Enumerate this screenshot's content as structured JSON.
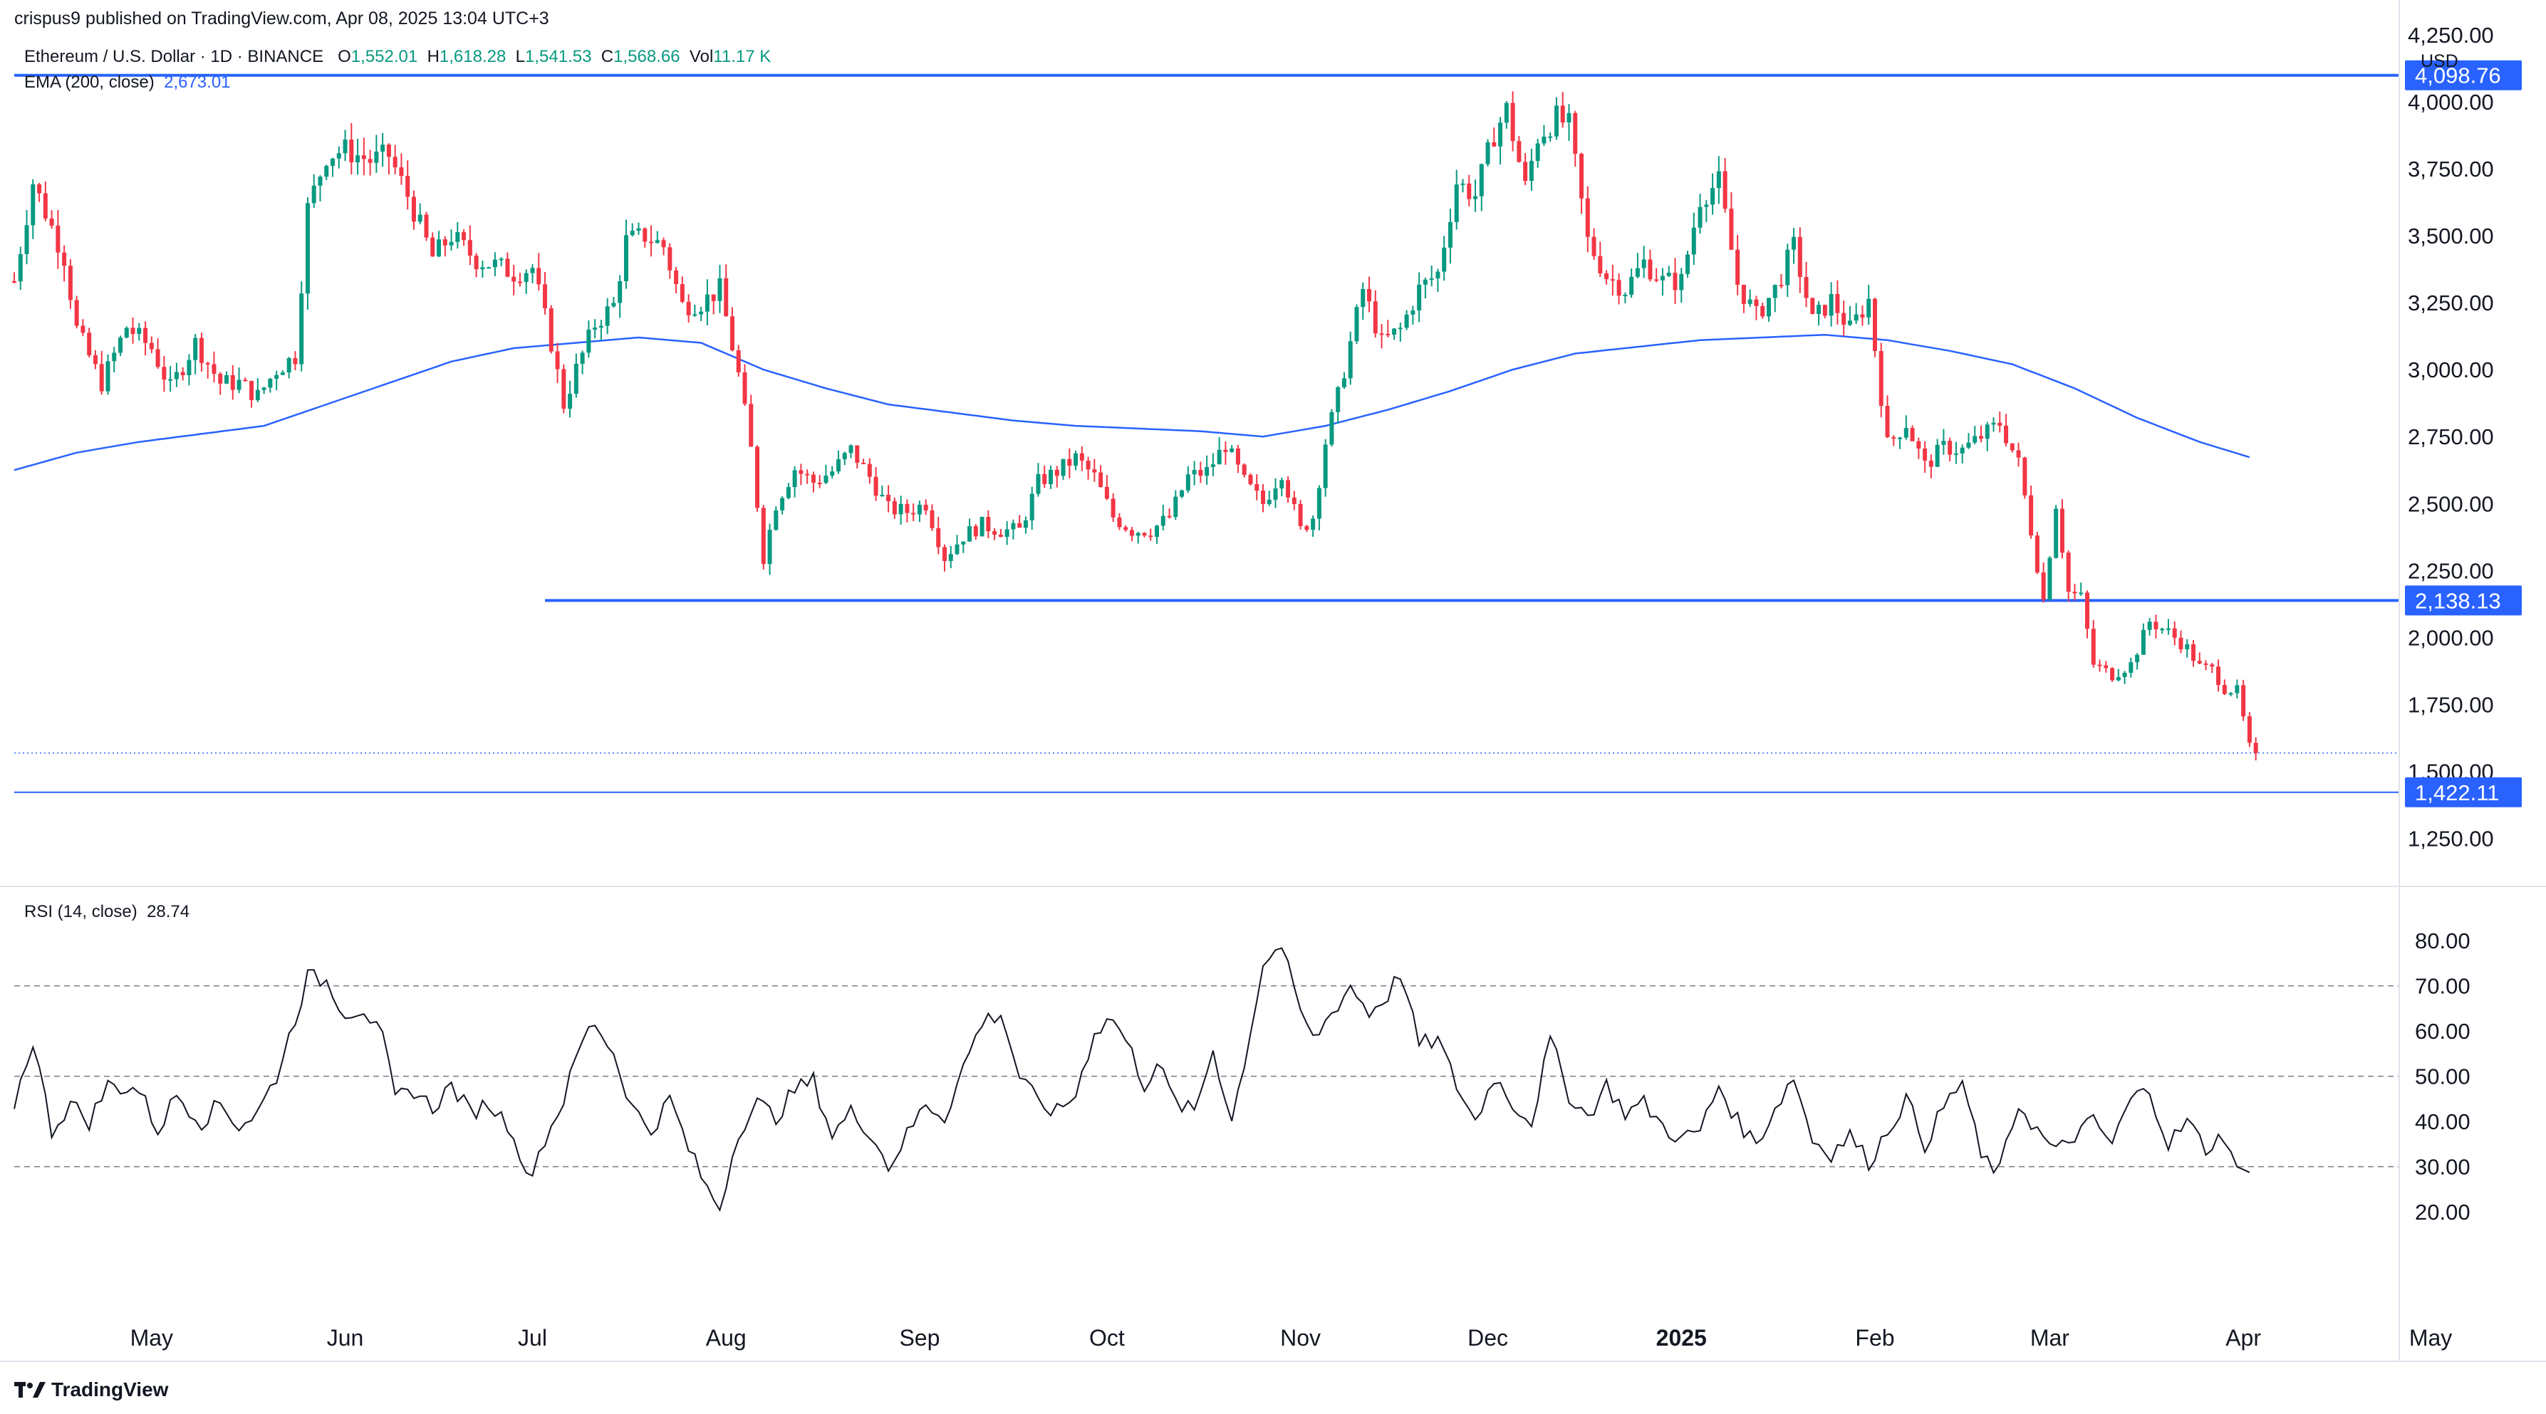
{
  "header": {
    "published": "crispus9 published on TradingView.com, Apr 08, 2025 13:04 UTC+3",
    "symbol": "Ethereum / U.S. Dollar · 1D · BINANCE",
    "o_label": "O",
    "o_val": "1,552.01",
    "h_label": "H",
    "h_val": "1,618.28",
    "l_label": "L",
    "l_val": "1,541.53",
    "c_label": "C",
    "c_val": "1,568.66",
    "vol_label": "Vol",
    "vol_val": "11.17 K",
    "ema_label": "EMA (200, close)",
    "ema_val": "2,673.01",
    "rsi_label": "RSI (14, close)",
    "rsi_val": "28.74",
    "currency": "USD"
  },
  "brand": {
    "name": "TradingView",
    "icon": "tradingview-logo-icon"
  },
  "colors": {
    "up": "#089981",
    "down": "#f23645",
    "ema": "#2962ff",
    "level": "#2962ff",
    "rsi": "#131722",
    "grid": "#787b86"
  },
  "chart_data": [
    {
      "type": "candlestick",
      "symbol": "ETH/USD",
      "interval": "1D",
      "ylim": [
        1100,
        4300
      ],
      "ytick_labels": [
        "1,250.00",
        "1,500.00",
        "1,750.00",
        "2,000.00",
        "2,250.00",
        "2,500.00",
        "2,750.00",
        "3,000.00",
        "3,250.00",
        "3,500.00",
        "3,750.00",
        "4,000.00",
        "4,250.00"
      ],
      "ytick_values": [
        1250,
        1500,
        1750,
        2000,
        2250,
        2500,
        2750,
        3000,
        3250,
        3500,
        3750,
        4000,
        4250
      ],
      "xtick_labels": [
        "May",
        "Jun",
        "Jul",
        "Aug",
        "Sep",
        "Oct",
        "Nov",
        "Dec",
        "2025",
        "Feb",
        "Mar",
        "Apr",
        "May"
      ],
      "xtick_days": [
        22,
        53,
        83,
        114,
        145,
        175,
        206,
        236,
        267,
        298,
        326,
        357,
        387
      ],
      "horizontal_levels": [
        {
          "label": "4,098.76",
          "value": 4098.76,
          "from_day": 0
        },
        {
          "label": "2,138.13",
          "value": 2138.13,
          "from_day": 85
        },
        {
          "label": "1,422.11",
          "value": 1422.11,
          "from_day": 0
        }
      ],
      "last_price": 1568.66,
      "price_anchors": [
        [
          0,
          3330
        ],
        [
          3,
          3700
        ],
        [
          8,
          3420
        ],
        [
          10,
          3150
        ],
        [
          14,
          2950
        ],
        [
          18,
          3160
        ],
        [
          22,
          3080
        ],
        [
          25,
          2930
        ],
        [
          29,
          3100
        ],
        [
          33,
          2950
        ],
        [
          36,
          2950
        ],
        [
          39,
          2900
        ],
        [
          42,
          3000
        ],
        [
          45,
          3050
        ],
        [
          47,
          3600
        ],
        [
          50,
          3800
        ],
        [
          53,
          3820
        ],
        [
          57,
          3780
        ],
        [
          60,
          3800
        ],
        [
          63,
          3650
        ],
        [
          67,
          3420
        ],
        [
          70,
          3500
        ],
        [
          74,
          3410
        ],
        [
          77,
          3390
        ],
        [
          80,
          3360
        ],
        [
          83,
          3380
        ],
        [
          86,
          3100
        ],
        [
          88,
          2870
        ],
        [
          90,
          3000
        ],
        [
          93,
          3170
        ],
        [
          96,
          3240
        ],
        [
          98,
          3480
        ],
        [
          101,
          3500
        ],
        [
          104,
          3460
        ],
        [
          107,
          3240
        ],
        [
          110,
          3250
        ],
        [
          113,
          3300
        ],
        [
          116,
          2980
        ],
        [
          118,
          2700
        ],
        [
          120,
          2300
        ],
        [
          122,
          2500
        ],
        [
          125,
          2630
        ],
        [
          128,
          2580
        ],
        [
          131,
          2620
        ],
        [
          134,
          2700
        ],
        [
          137,
          2600
        ],
        [
          140,
          2480
        ],
        [
          143,
          2470
        ],
        [
          146,
          2500
        ],
        [
          149,
          2300
        ],
        [
          152,
          2380
        ],
        [
          155,
          2420
        ],
        [
          158,
          2400
        ],
        [
          161,
          2400
        ],
        [
          164,
          2580
        ],
        [
          167,
          2620
        ],
        [
          170,
          2670
        ],
        [
          173,
          2600
        ],
        [
          176,
          2450
        ],
        [
          179,
          2400
        ],
        [
          182,
          2400
        ],
        [
          185,
          2450
        ],
        [
          188,
          2600
        ],
        [
          191,
          2620
        ],
        [
          194,
          2720
        ],
        [
          197,
          2580
        ],
        [
          200,
          2500
        ],
        [
          203,
          2620
        ],
        [
          206,
          2400
        ],
        [
          208,
          2450
        ],
        [
          210,
          2730
        ],
        [
          212,
          2900
        ],
        [
          214,
          3100
        ],
        [
          216,
          3300
        ],
        [
          219,
          3100
        ],
        [
          222,
          3150
        ],
        [
          225,
          3300
        ],
        [
          228,
          3360
        ],
        [
          231,
          3700
        ],
        [
          234,
          3650
        ],
        [
          237,
          3880
        ],
        [
          239,
          3970
        ],
        [
          242,
          3680
        ],
        [
          244,
          3870
        ],
        [
          247,
          3940
        ],
        [
          249,
          3910
        ],
        [
          252,
          3480
        ],
        [
          255,
          3350
        ],
        [
          258,
          3300
        ],
        [
          261,
          3400
        ],
        [
          264,
          3330
        ],
        [
          267,
          3330
        ],
        [
          270,
          3640
        ],
        [
          273,
          3700
        ],
        [
          276,
          3320
        ],
        [
          279,
          3200
        ],
        [
          282,
          3300
        ],
        [
          285,
          3460
        ],
        [
          288,
          3180
        ],
        [
          291,
          3260
        ],
        [
          294,
          3150
        ],
        [
          297,
          3260
        ],
        [
          300,
          2720
        ],
        [
          303,
          2800
        ],
        [
          306,
          2640
        ],
        [
          309,
          2710
        ],
        [
          312,
          2700
        ],
        [
          315,
          2750
        ],
        [
          318,
          2800
        ],
        [
          321,
          2650
        ],
        [
          323,
          2400
        ],
        [
          325,
          2140
        ],
        [
          327,
          2500
        ],
        [
          329,
          2170
        ],
        [
          331,
          2150
        ],
        [
          333,
          1900
        ],
        [
          336,
          1860
        ],
        [
          339,
          1900
        ],
        [
          342,
          2060
        ],
        [
          345,
          2020
        ],
        [
          348,
          1960
        ],
        [
          350,
          1890
        ],
        [
          352,
          1880
        ],
        [
          354,
          1810
        ],
        [
          356,
          1800
        ],
        [
          358,
          1590
        ],
        [
          359,
          1569
        ]
      ],
      "ema200_anchors": [
        [
          0,
          2625
        ],
        [
          10,
          2690
        ],
        [
          20,
          2730
        ],
        [
          30,
          2760
        ],
        [
          40,
          2790
        ],
        [
          50,
          2870
        ],
        [
          60,
          2950
        ],
        [
          70,
          3030
        ],
        [
          80,
          3080
        ],
        [
          90,
          3100
        ],
        [
          100,
          3120
        ],
        [
          110,
          3100
        ],
        [
          120,
          3000
        ],
        [
          130,
          2930
        ],
        [
          140,
          2870
        ],
        [
          150,
          2840
        ],
        [
          160,
          2810
        ],
        [
          170,
          2790
        ],
        [
          180,
          2780
        ],
        [
          190,
          2770
        ],
        [
          200,
          2750
        ],
        [
          210,
          2790
        ],
        [
          220,
          2850
        ],
        [
          230,
          2920
        ],
        [
          240,
          3000
        ],
        [
          250,
          3060
        ],
        [
          260,
          3085
        ],
        [
          270,
          3110
        ],
        [
          280,
          3120
        ],
        [
          290,
          3130
        ],
        [
          300,
          3110
        ],
        [
          310,
          3070
        ],
        [
          320,
          3020
        ],
        [
          330,
          2930
        ],
        [
          340,
          2820
        ],
        [
          350,
          2730
        ],
        [
          358,
          2673
        ]
      ]
    },
    {
      "type": "line",
      "name": "RSI (14, close)",
      "ylim": [
        12,
        86
      ],
      "ytick_labels": [
        "20.00",
        "30.00",
        "40.00",
        "50.00",
        "60.00",
        "70.00",
        "80.00"
      ],
      "ytick_values": [
        20,
        30,
        40,
        50,
        60,
        70,
        80
      ],
      "bands": [
        30,
        50,
        70
      ],
      "last_value": 28.74,
      "anchors": [
        [
          0,
          44
        ],
        [
          3,
          58
        ],
        [
          6,
          38
        ],
        [
          9,
          44
        ],
        [
          12,
          40
        ],
        [
          15,
          48
        ],
        [
          20,
          47
        ],
        [
          23,
          38
        ],
        [
          26,
          46
        ],
        [
          30,
          40
        ],
        [
          33,
          44
        ],
        [
          36,
          39
        ],
        [
          39,
          42
        ],
        [
          42,
          50
        ],
        [
          45,
          63
        ],
        [
          47,
          72
        ],
        [
          50,
          71
        ],
        [
          53,
          64
        ],
        [
          56,
          65
        ],
        [
          59,
          58
        ],
        [
          61,
          45
        ],
        [
          64,
          47
        ],
        [
          67,
          43
        ],
        [
          70,
          48
        ],
        [
          73,
          42
        ],
        [
          76,
          44
        ],
        [
          80,
          38
        ],
        [
          82,
          27
        ],
        [
          85,
          36
        ],
        [
          88,
          45
        ],
        [
          91,
          58
        ],
        [
          93,
          62
        ],
        [
          96,
          55
        ],
        [
          99,
          43
        ],
        [
          102,
          38
        ],
        [
          105,
          45
        ],
        [
          108,
          34
        ],
        [
          111,
          25
        ],
        [
          113,
          21
        ],
        [
          116,
          38
        ],
        [
          119,
          44
        ],
        [
          122,
          41
        ],
        [
          125,
          47
        ],
        [
          128,
          49
        ],
        [
          131,
          37
        ],
        [
          134,
          42
        ],
        [
          137,
          38
        ],
        [
          140,
          30
        ],
        [
          143,
          37
        ],
        [
          146,
          44
        ],
        [
          149,
          41
        ],
        [
          152,
          52
        ],
        [
          155,
          62
        ],
        [
          158,
          64
        ],
        [
          161,
          50
        ],
        [
          164,
          44
        ],
        [
          167,
          42
        ],
        [
          170,
          46
        ],
        [
          173,
          60
        ],
        [
          176,
          63
        ],
        [
          179,
          55
        ],
        [
          181,
          48
        ],
        [
          183,
          53
        ],
        [
          186,
          44
        ],
        [
          189,
          42
        ],
        [
          192,
          56
        ],
        [
          195,
          40
        ],
        [
          198,
          60
        ],
        [
          200,
          75
        ],
        [
          203,
          79
        ],
        [
          205,
          68
        ],
        [
          208,
          58
        ],
        [
          211,
          64
        ],
        [
          214,
          70
        ],
        [
          217,
          64
        ],
        [
          220,
          68
        ],
        [
          222,
          73
        ],
        [
          225,
          57
        ],
        [
          228,
          58
        ],
        [
          231,
          48
        ],
        [
          234,
          40
        ],
        [
          237,
          50
        ],
        [
          240,
          44
        ],
        [
          243,
          40
        ],
        [
          246,
          58
        ],
        [
          249,
          46
        ],
        [
          252,
          41
        ],
        [
          255,
          48
        ],
        [
          258,
          42
        ],
        [
          261,
          44
        ],
        [
          264,
          39
        ],
        [
          267,
          36
        ],
        [
          270,
          38
        ],
        [
          273,
          48
        ],
        [
          276,
          40
        ],
        [
          279,
          35
        ],
        [
          282,
          43
        ],
        [
          285,
          50
        ],
        [
          288,
          36
        ],
        [
          291,
          33
        ],
        [
          294,
          37
        ],
        [
          297,
          31
        ],
        [
          300,
          38
        ],
        [
          303,
          45
        ],
        [
          306,
          35
        ],
        [
          309,
          43
        ],
        [
          312,
          49
        ],
        [
          315,
          32
        ],
        [
          318,
          29
        ],
        [
          321,
          44
        ],
        [
          324,
          38
        ],
        [
          327,
          33
        ],
        [
          330,
          37
        ],
        [
          333,
          40
        ],
        [
          336,
          35
        ],
        [
          339,
          45
        ],
        [
          342,
          47
        ],
        [
          345,
          35
        ],
        [
          348,
          40
        ],
        [
          351,
          34
        ],
        [
          354,
          37
        ],
        [
          356,
          30
        ],
        [
          358,
          28.74
        ]
      ]
    }
  ]
}
